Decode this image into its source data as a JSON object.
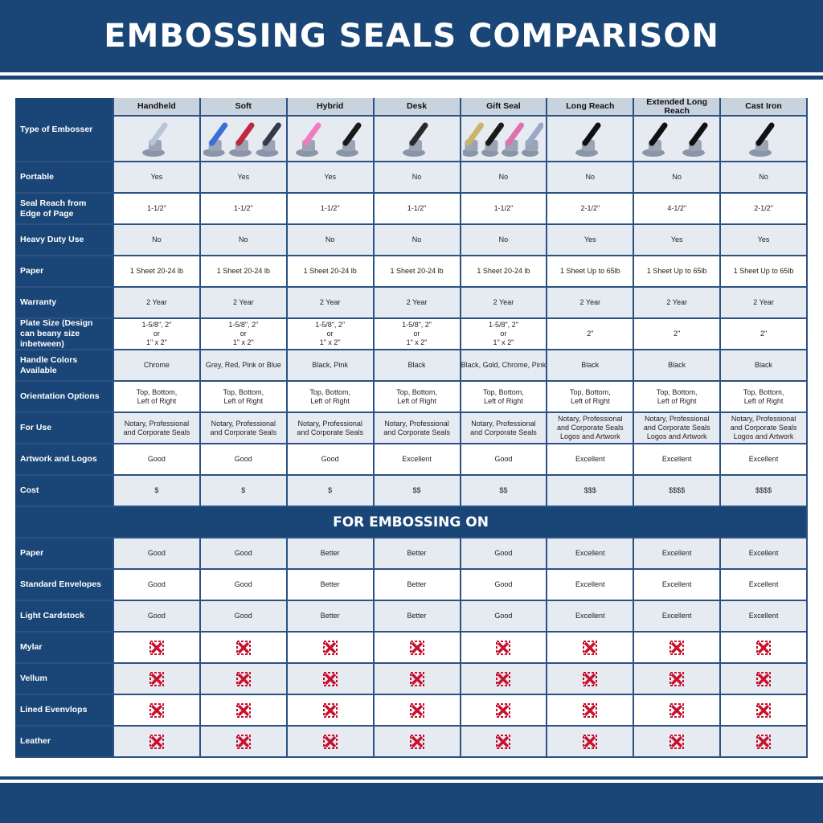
{
  "title": "EMBOSSING SEALS COMPARISON",
  "type_label": "Type of Embosser",
  "columns": [
    "Handheld",
    "Soft",
    "Hybrid",
    "Desk",
    "Gift Seal",
    "Long Reach",
    "Extended Long Reach",
    "Cast Iron"
  ],
  "product_colors": [
    [
      "#b8c4d8"
    ],
    [
      "#3a6fd8",
      "#c0283c",
      "#333a48"
    ],
    [
      "#f07cc0",
      "#1a1a1a"
    ],
    [
      "#2a2a2a"
    ],
    [
      "#c9b46a",
      "#1a1a1a",
      "#e070b0",
      "#9aa8c8"
    ],
    [
      "#111111"
    ],
    [
      "#111111",
      "#111111"
    ],
    [
      "#111111"
    ]
  ],
  "rows": [
    {
      "label": "Portable",
      "values": [
        "Yes",
        "Yes",
        "Yes",
        "No",
        "No",
        "No",
        "No",
        "No"
      ]
    },
    {
      "label": "Seal Reach from Edge of Page",
      "values": [
        "1-1/2\"",
        "1-1/2\"",
        "1-1/2\"",
        "1-1/2\"",
        "1-1/2\"",
        "2-1/2\"",
        "4-1/2\"",
        "2-1/2\""
      ]
    },
    {
      "label": "Heavy Duty Use",
      "values": [
        "No",
        "No",
        "No",
        "No",
        "No",
        "Yes",
        "Yes",
        "Yes"
      ]
    },
    {
      "label": "Paper",
      "values": [
        "1 Sheet 20-24 lb",
        "1 Sheet 20-24 lb",
        "1 Sheet 20-24 lb",
        "1 Sheet 20-24 lb",
        "1 Sheet 20-24 lb",
        "1 Sheet Up to 65lb",
        "1 Sheet Up to 65lb",
        "1 Sheet Up to 65lb"
      ]
    },
    {
      "label": "Warranty",
      "values": [
        "2 Year",
        "2 Year",
        "2 Year",
        "2 Year",
        "2 Year",
        "2 Year",
        "2 Year",
        "2 Year"
      ]
    },
    {
      "label": "Plate Size (Design can beany size inbetween)",
      "values": [
        "1-5/8\", 2\"\nor\n1\" x 2\"",
        "1-5/8\", 2\"\nor\n1\" x 2\"",
        "1-5/8\", 2\"\nor\n1\" x 2\"",
        "1-5/8\", 2\"\nor\n1\" x 2\"",
        "1-5/8\", 2\"\nor\n1\" x 2\"",
        "2\"",
        "2\"",
        "2\""
      ]
    },
    {
      "label": "Handle Colors Available",
      "values": [
        "Chrome",
        "Grey, Red, Pink or Blue",
        "Black, Pink",
        "Black",
        "Black, Gold, Chrome, Pink",
        "Black",
        "Black",
        "Black"
      ]
    },
    {
      "label": "Orientation Options",
      "values": [
        "Top, Bottom,\nLeft of Right",
        "Top, Bottom,\nLeft of Right",
        "Top, Bottom,\nLeft of Right",
        "Top, Bottom,\nLeft of Right",
        "Top, Bottom,\nLeft of Right",
        "Top, Bottom,\nLeft of Right",
        "Top, Bottom,\nLeft of Right",
        "Top, Bottom,\nLeft of Right"
      ]
    },
    {
      "label": "For Use",
      "values": [
        "Notary, Professional\nand Corporate Seals",
        "Notary, Professional\nand Corporate Seals",
        "Notary, Professional\nand Corporate Seals",
        "Notary, Professional\nand Corporate Seals",
        "Notary, Professional\nand Corporate Seals",
        "Notary, Professional\nand Corporate Seals\nLogos and Artwork",
        "Notary, Professional\nand Corporate Seals\nLogos and Artwork",
        "Notary, Professional\nand Corporate Seals\nLogos and Artwork"
      ]
    },
    {
      "label": "Artwork and Logos",
      "values": [
        "Good",
        "Good",
        "Good",
        "Excellent",
        "Good",
        "Excellent",
        "Excellent",
        "Excellent"
      ]
    },
    {
      "label": "Cost",
      "values": [
        "$",
        "$",
        "$",
        "$$",
        "$$",
        "$$$",
        "$$$$",
        "$$$$"
      ]
    }
  ],
  "section_title": "FOR EMBOSSING ON",
  "embossing_rows": [
    {
      "label": "Paper",
      "values": [
        "Good",
        "Good",
        "Better",
        "Better",
        "Good",
        "Excellent",
        "Excellent",
        "Excellent"
      ]
    },
    {
      "label": "Standard Envelopes",
      "values": [
        "Good",
        "Good",
        "Better",
        "Better",
        "Good",
        "Excellent",
        "Excellent",
        "Excellent"
      ]
    },
    {
      "label": "Light Cardstock",
      "values": [
        "Good",
        "Good",
        "Better",
        "Better",
        "Good",
        "Excellent",
        "Excellent",
        "Excellent"
      ]
    },
    {
      "label": "Mylar",
      "values": [
        "x",
        "x",
        "x",
        "x",
        "x",
        "x",
        "x",
        "x"
      ]
    },
    {
      "label": "Vellum",
      "values": [
        "x",
        "x",
        "x",
        "x",
        "x",
        "x",
        "x",
        "x"
      ]
    },
    {
      "label": "Lined Evenvlops",
      "values": [
        "x",
        "x",
        "x",
        "x",
        "x",
        "x",
        "x",
        "x"
      ]
    },
    {
      "label": "Leather",
      "values": [
        "x",
        "x",
        "x",
        "x",
        "x",
        "x",
        "x",
        "x"
      ]
    }
  ],
  "colors": {
    "navy": "#1a4677",
    "x_mark": "#c8102e"
  }
}
